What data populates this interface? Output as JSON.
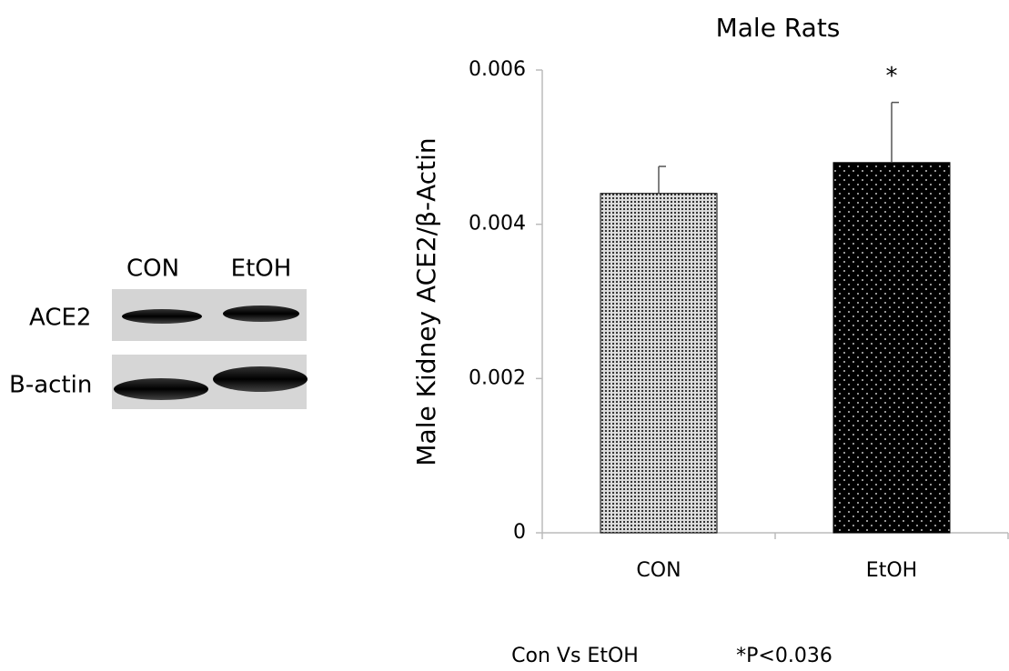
{
  "chart_data": {
    "type": "bar",
    "title": "Male Rats",
    "ylabel": "Male Kidney ACE2/β-Actin",
    "categories": [
      "CON",
      "EtOH"
    ],
    "values": [
      0.0044,
      0.0048
    ],
    "errors": [
      0.00035,
      0.00078
    ],
    "ylim": [
      0,
      0.006
    ],
    "yticks": [
      0,
      0.002,
      0.004,
      0.006
    ],
    "annotation": "*",
    "footnote": "Con Vs EtOH",
    "p_value": "*P<0.036"
  },
  "blot": {
    "lanes": [
      "CON",
      "EtOH"
    ],
    "rows": [
      "ACE2",
      "B-actin"
    ]
  }
}
